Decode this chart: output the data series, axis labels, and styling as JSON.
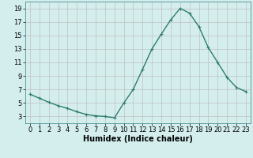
{
  "x": [
    0,
    1,
    2,
    3,
    4,
    5,
    6,
    7,
    8,
    9,
    10,
    11,
    12,
    13,
    14,
    15,
    16,
    17,
    18,
    19,
    20,
    21,
    22,
    23
  ],
  "y": [
    6.3,
    5.7,
    5.1,
    4.6,
    4.2,
    3.7,
    3.3,
    3.1,
    3.0,
    2.8,
    5.0,
    7.0,
    10.0,
    13.0,
    15.2,
    17.3,
    19.0,
    18.3,
    16.3,
    13.2,
    11.0,
    8.8,
    7.3,
    6.7
  ],
  "line_color": "#2d7d6e",
  "marker": "+",
  "marker_size": 3,
  "bg_color": "#d4eeee",
  "grid_color": "#c0c0c0",
  "xlabel": "Humidex (Indice chaleur)",
  "xlim": [
    -0.5,
    23.5
  ],
  "ylim": [
    2,
    20
  ],
  "yticks": [
    3,
    5,
    7,
    9,
    11,
    13,
    15,
    17,
    19
  ],
  "xticks": [
    0,
    1,
    2,
    3,
    4,
    5,
    6,
    7,
    8,
    9,
    10,
    11,
    12,
    13,
    14,
    15,
    16,
    17,
    18,
    19,
    20,
    21,
    22,
    23
  ],
  "xlabel_fontsize": 7,
  "tick_fontsize": 6,
  "linewidth": 1.0,
  "markeredgewidth": 0.8
}
